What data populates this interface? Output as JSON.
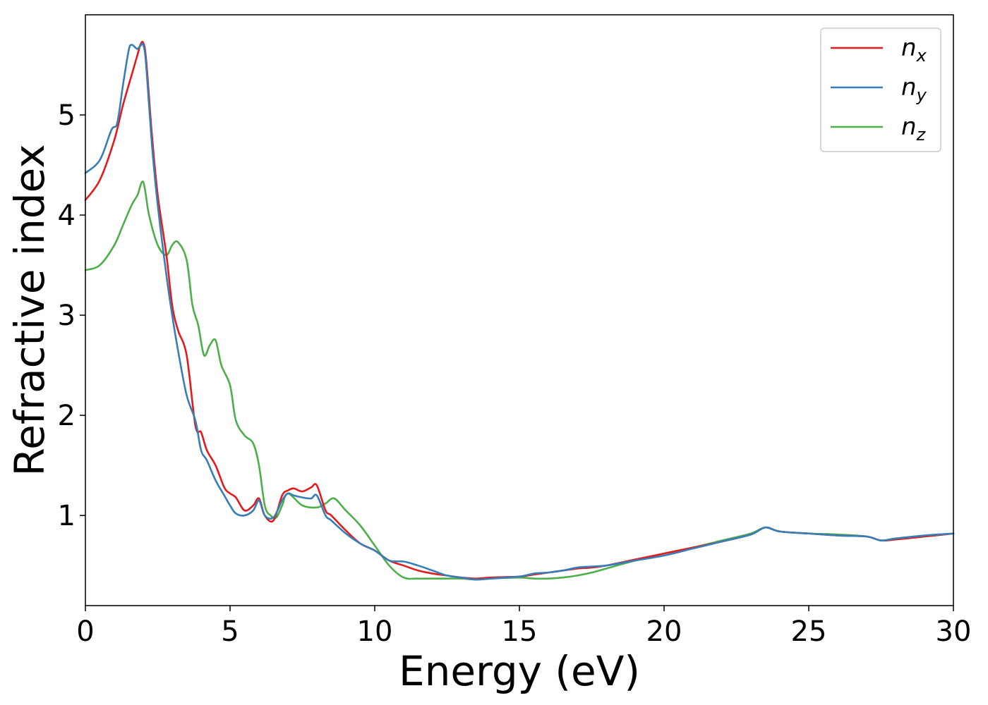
{
  "chart_data": {
    "type": "line",
    "title": "",
    "xlabel": "Energy (eV)",
    "ylabel": "Refractive index",
    "xlim": [
      0,
      30
    ],
    "ylim": [
      0.1,
      6.0
    ],
    "xticks": [
      0,
      5,
      10,
      15,
      20,
      25,
      30
    ],
    "yticks": [
      1,
      2,
      3,
      4,
      5
    ],
    "grid": false,
    "legend_position": "top-right",
    "series": [
      {
        "name": "n_x",
        "symbol": "n",
        "subscript": "x",
        "color": "#e41a1c",
        "x": [
          0,
          0.5,
          1.0,
          1.3,
          1.6,
          1.8,
          1.9,
          2.0,
          2.1,
          2.3,
          2.5,
          2.8,
          3.0,
          3.2,
          3.5,
          3.8,
          4.0,
          4.2,
          4.5,
          4.8,
          5.0,
          5.2,
          5.5,
          5.8,
          6.0,
          6.2,
          6.5,
          6.8,
          7.0,
          7.2,
          7.5,
          7.8,
          8.0,
          8.3,
          8.5,
          9.0,
          9.5,
          10.0,
          10.5,
          11.0,
          11.5,
          12.0,
          12.5,
          13.0,
          13.5,
          14.0,
          15.0,
          15.5,
          16.0,
          16.5,
          17.0,
          17.5,
          18.0,
          19.0,
          20.0,
          21.0,
          22.0,
          23.0,
          23.5,
          24.0,
          25.0,
          26.0,
          27.0,
          27.5,
          28.0,
          29.0,
          30.0
        ],
        "y": [
          4.15,
          4.35,
          4.75,
          5.1,
          5.4,
          5.6,
          5.7,
          5.72,
          5.55,
          4.8,
          4.2,
          3.6,
          3.1,
          2.85,
          2.6,
          1.9,
          1.83,
          1.65,
          1.5,
          1.28,
          1.22,
          1.18,
          1.05,
          1.1,
          1.17,
          1.0,
          0.95,
          1.2,
          1.25,
          1.27,
          1.24,
          1.28,
          1.3,
          1.05,
          1.0,
          0.85,
          0.72,
          0.65,
          0.55,
          0.5,
          0.45,
          0.42,
          0.4,
          0.38,
          0.37,
          0.38,
          0.39,
          0.41,
          0.43,
          0.45,
          0.47,
          0.48,
          0.5,
          0.56,
          0.62,
          0.68,
          0.74,
          0.81,
          0.88,
          0.84,
          0.82,
          0.8,
          0.79,
          0.75,
          0.76,
          0.79,
          0.82
        ]
      },
      {
        "name": "n_y",
        "symbol": "n",
        "subscript": "y",
        "color": "#377eb8",
        "x": [
          0,
          0.5,
          0.9,
          1.1,
          1.3,
          1.5,
          1.6,
          1.7,
          1.8,
          1.9,
          2.0,
          2.1,
          2.3,
          2.5,
          2.8,
          3.0,
          3.2,
          3.5,
          3.8,
          4.0,
          4.2,
          4.5,
          4.8,
          5.0,
          5.2,
          5.5,
          5.8,
          6.0,
          6.2,
          6.5,
          6.8,
          7.0,
          7.2,
          7.5,
          7.8,
          8.0,
          8.3,
          8.5,
          9.0,
          9.5,
          10.0,
          10.5,
          11.0,
          11.5,
          12.0,
          12.5,
          13.0,
          13.5,
          14.0,
          15.0,
          15.5,
          16.0,
          16.5,
          17.0,
          17.5,
          18.0,
          19.0,
          20.0,
          21.0,
          22.0,
          23.0,
          23.5,
          24.0,
          25.0,
          26.0,
          27.0,
          27.5,
          28.0,
          29.0,
          30.0
        ],
        "y": [
          4.42,
          4.55,
          4.85,
          4.92,
          5.3,
          5.65,
          5.7,
          5.68,
          5.66,
          5.69,
          5.7,
          5.5,
          4.7,
          4.1,
          3.4,
          3.0,
          2.65,
          2.2,
          1.95,
          1.65,
          1.55,
          1.35,
          1.2,
          1.1,
          1.02,
          1.0,
          1.05,
          1.15,
          1.0,
          0.98,
          1.15,
          1.22,
          1.2,
          1.18,
          1.17,
          1.2,
          1.0,
          0.95,
          0.82,
          0.72,
          0.65,
          0.55,
          0.54,
          0.5,
          0.45,
          0.4,
          0.38,
          0.36,
          0.37,
          0.39,
          0.42,
          0.43,
          0.45,
          0.48,
          0.49,
          0.5,
          0.55,
          0.6,
          0.67,
          0.74,
          0.81,
          0.88,
          0.84,
          0.82,
          0.8,
          0.79,
          0.75,
          0.77,
          0.8,
          0.82
        ]
      },
      {
        "name": "n_z",
        "symbol": "n",
        "subscript": "z",
        "color": "#4daf4a",
        "x": [
          0,
          0.5,
          1.0,
          1.3,
          1.6,
          1.8,
          2.0,
          2.2,
          2.5,
          2.8,
          3.0,
          3.2,
          3.5,
          3.7,
          3.9,
          4.1,
          4.3,
          4.5,
          4.7,
          5.0,
          5.2,
          5.5,
          5.8,
          6.0,
          6.2,
          6.4,
          6.6,
          6.8,
          7.0,
          7.5,
          8.0,
          8.3,
          8.6,
          9.0,
          9.5,
          10.0,
          10.5,
          11.0,
          11.5,
          12.0,
          12.5,
          13.0,
          13.5,
          14.0,
          15.0,
          15.5,
          16.0,
          16.5,
          17.0,
          17.5,
          18.0,
          19.0,
          20.0,
          21.0,
          22.0,
          23.0,
          23.5,
          24.0,
          25.0,
          26.0,
          27.0,
          27.5,
          28.0,
          29.0,
          30.0
        ],
        "y": [
          3.45,
          3.5,
          3.7,
          3.9,
          4.1,
          4.2,
          4.33,
          4.0,
          3.7,
          3.6,
          3.7,
          3.73,
          3.55,
          3.1,
          2.9,
          2.6,
          2.7,
          2.75,
          2.5,
          2.3,
          1.95,
          1.8,
          1.72,
          1.5,
          1.1,
          1.0,
          0.98,
          1.1,
          1.22,
          1.1,
          1.08,
          1.12,
          1.17,
          1.05,
          0.9,
          0.7,
          0.5,
          0.38,
          0.37,
          0.37,
          0.37,
          0.37,
          0.36,
          0.37,
          0.38,
          0.37,
          0.37,
          0.38,
          0.4,
          0.43,
          0.47,
          0.55,
          0.62,
          0.68,
          0.75,
          0.82,
          0.88,
          0.84,
          0.82,
          0.81,
          0.79,
          0.75,
          0.77,
          0.79,
          0.82
        ]
      }
    ]
  }
}
